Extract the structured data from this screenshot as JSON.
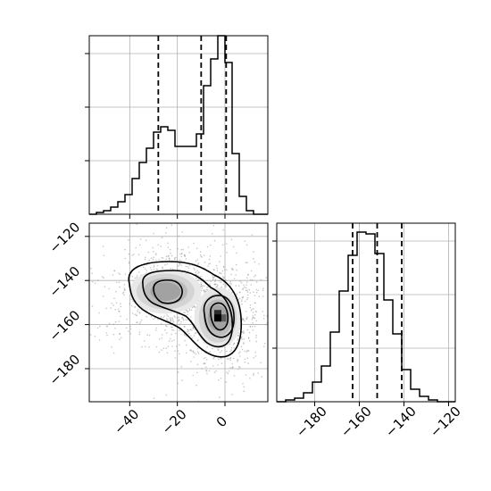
{
  "chart_data": {
    "type": "corner",
    "panels": [
      {
        "id": "marginal-x",
        "type": "histogram",
        "xlim": [
          -57,
          18
        ],
        "ylim": [
          0,
          1.0
        ],
        "grid": true,
        "bin_edges": [
          -57,
          -54,
          -51,
          -48,
          -45,
          -42,
          -39,
          -36,
          -33,
          -30,
          -27,
          -24,
          -21,
          -18,
          -15,
          -12,
          -9,
          -6,
          -3,
          0,
          3,
          6,
          9,
          12,
          15,
          18
        ],
        "counts": [
          0.0,
          0.01,
          0.02,
          0.04,
          0.07,
          0.11,
          0.2,
          0.29,
          0.37,
          0.46,
          0.49,
          0.47,
          0.38,
          0.38,
          0.38,
          0.45,
          0.72,
          0.87,
          1.0,
          0.85,
          0.34,
          0.1,
          0.02,
          0.0,
          0.0
        ],
        "quantiles": [
          -28,
          -10,
          0.5
        ]
      },
      {
        "id": "joint",
        "type": "2d-density",
        "xlim": [
          -57,
          18
        ],
        "ylim": [
          -195,
          -114
        ],
        "x_ticks": [
          -40,
          -20,
          0
        ],
        "x_tick_labels": [
          "−40",
          "−20",
          "0"
        ],
        "y_ticks": [
          -120,
          -140,
          -160,
          -180
        ],
        "y_tick_labels": [
          "−120",
          "−140",
          "−160",
          "−180"
        ],
        "grid": true,
        "modes": [
          {
            "x": -25,
            "y": -145
          },
          {
            "x": -3,
            "y": -157
          }
        ],
        "contour_levels": 4
      },
      {
        "id": "marginal-y",
        "type": "histogram",
        "xlim": [
          -197,
          -117
        ],
        "ylim": [
          0,
          1.0
        ],
        "grid": true,
        "x_ticks": [
          -180,
          -160,
          -140,
          -120
        ],
        "x_tick_labels": [
          "−180",
          "−160",
          "−140",
          "−120"
        ],
        "bin_edges": [
          -197,
          -193,
          -189,
          -185,
          -181,
          -177,
          -173,
          -169,
          -165,
          -161,
          -157,
          -153,
          -149,
          -145,
          -141,
          -137,
          -133,
          -129,
          -125,
          -121,
          -117
        ],
        "counts": [
          0.0,
          0.01,
          0.02,
          0.05,
          0.11,
          0.2,
          0.39,
          0.62,
          0.82,
          0.95,
          0.94,
          0.83,
          0.57,
          0.38,
          0.18,
          0.07,
          0.03,
          0.01,
          0.0,
          0.0
        ],
        "quantiles": [
          -163,
          -152,
          -141
        ]
      }
    ]
  }
}
